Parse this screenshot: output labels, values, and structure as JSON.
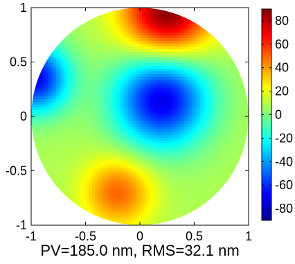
{
  "chart_data": {
    "type": "heatmap",
    "shape": "circle",
    "x_ticks": [
      -1,
      -0.5,
      0,
      0.5,
      1
    ],
    "y_ticks": [
      -1,
      -0.5,
      0,
      0.5,
      1
    ],
    "xlim": [
      -1,
      1
    ],
    "ylim": [
      -1,
      1
    ],
    "colorbar": {
      "range": [
        -90,
        90
      ],
      "ticks": [
        80,
        60,
        40,
        20,
        0,
        -20,
        -40,
        -60,
        -80
      ],
      "colormap": "jet"
    },
    "features": [
      {
        "kind": "minimum",
        "x": 0.2,
        "y": 0.15,
        "value": -72
      },
      {
        "kind": "maximum",
        "x": -0.2,
        "y": -0.7,
        "value": 50
      },
      {
        "kind": "edge-high",
        "x": 0.25,
        "y": 0.95,
        "value": 90
      },
      {
        "kind": "edge-low",
        "x": -0.97,
        "y": 0.35,
        "value": -70
      }
    ],
    "caption": "PV=185.0 nm, RMS=32.1 nm",
    "grid": false
  }
}
